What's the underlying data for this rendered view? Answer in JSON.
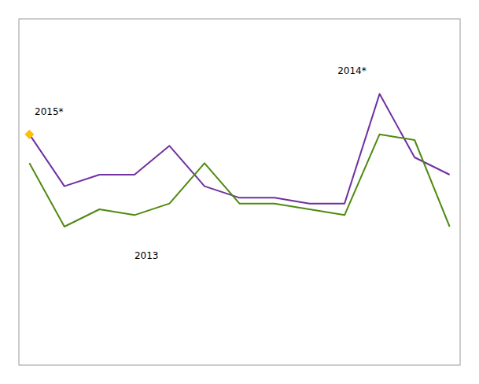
{
  "chart_data": {
    "type": "line",
    "x": [
      0,
      1,
      2,
      3,
      4,
      5,
      6,
      7,
      8,
      9,
      10,
      11,
      12
    ],
    "series": [
      {
        "color": "#7030a0",
        "values": [
          100,
          91,
          93,
          93,
          98,
          91,
          89,
          89,
          88,
          88,
          107,
          96,
          93
        ]
      },
      {
        "color": "#4f8a10",
        "values": [
          95,
          84,
          87,
          86,
          88,
          95,
          88,
          88,
          87,
          86,
          100,
          99,
          84
        ]
      },
      {
        "type": "scatter",
        "marker": "diamond",
        "color": "#ffc000",
        "values": [
          100,
          null,
          null,
          null,
          null,
          null,
          null,
          null,
          null,
          null,
          null,
          null,
          null
        ]
      }
    ],
    "annotations": [
      {
        "text": "2015*",
        "x": 0.15,
        "y": 103
      },
      {
        "text": "2013",
        "x": 3.0,
        "y": 78
      },
      {
        "text": "2014*",
        "x": 8.8,
        "y": 110
      }
    ],
    "xlim": [
      -0.3,
      12.3
    ],
    "ylim": [
      60,
      120
    ],
    "tick_labels": false,
    "grid": false
  }
}
